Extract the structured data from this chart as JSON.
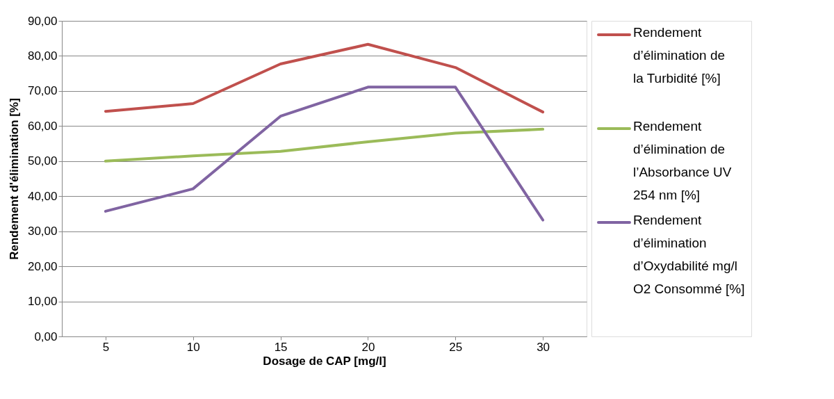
{
  "chart_data": {
    "type": "line",
    "xlabel": "Dosage de CAP [mg/l]",
    "ylabel": "Rendement d'élimination [%]",
    "categories": [
      "5",
      "10",
      "15",
      "20",
      "25",
      "30"
    ],
    "series": [
      {
        "name": "Rendement d’élimination de la Turbidité [%]",
        "color": "#c0504d",
        "values": [
          64.2,
          66.4,
          77.7,
          83.3,
          76.7,
          64.0
        ]
      },
      {
        "name": "Rendement d’élimination de l’Absorbance UV 254 nm [%]",
        "color": "#9bbb59",
        "values": [
          50.0,
          51.5,
          52.8,
          55.5,
          58.0,
          59.1
        ]
      },
      {
        "name": "Rendement d’élimination d’Oxydabilité mg/l O2 Consommé [%]",
        "color": "#8064a2",
        "values": [
          35.7,
          42.1,
          62.8,
          71.1,
          71.1,
          33.2
        ]
      }
    ],
    "ylim": [
      0,
      90
    ],
    "yticks": [
      {
        "value": 0,
        "label": "0,00"
      },
      {
        "value": 10,
        "label": "10,00"
      },
      {
        "value": 20,
        "label": "20,00"
      },
      {
        "value": 30,
        "label": "30,00"
      },
      {
        "value": 40,
        "label": "40,00"
      },
      {
        "value": 50,
        "label": "50,00"
      },
      {
        "value": 60,
        "label": "60,00"
      },
      {
        "value": 70,
        "label": "70,00"
      },
      {
        "value": 80,
        "label": "80,00"
      },
      {
        "value": 90,
        "label": "90,00"
      }
    ],
    "grid": "y",
    "legend": "right",
    "marker": "none",
    "line_style": "solid"
  }
}
